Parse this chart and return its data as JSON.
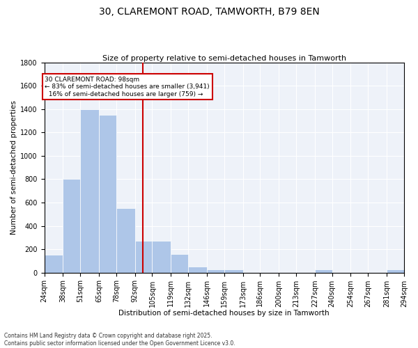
{
  "title": "30, CLAREMONT ROAD, TAMWORTH, B79 8EN",
  "subtitle": "Size of property relative to semi-detached houses in Tamworth",
  "xlabel": "Distribution of semi-detached houses by size in Tamworth",
  "ylabel": "Number of semi-detached properties",
  "property_size": 98,
  "property_label": "30 CLAREMONT ROAD: 98sqm",
  "smaller_pct": 83,
  "smaller_count": 3941,
  "larger_pct": 16,
  "larger_count": 759,
  "bin_edges": [
    24,
    38,
    51,
    65,
    78,
    92,
    105,
    119,
    132,
    146,
    159,
    173,
    186,
    200,
    213,
    227,
    240,
    254,
    267,
    281,
    294
  ],
  "bin_labels": [
    "24sqm",
    "38sqm",
    "51sqm",
    "65sqm",
    "78sqm",
    "92sqm",
    "105sqm",
    "119sqm",
    "132sqm",
    "146sqm",
    "159sqm",
    "173sqm",
    "186sqm",
    "200sqm",
    "213sqm",
    "227sqm",
    "240sqm",
    "254sqm",
    "267sqm",
    "281sqm",
    "294sqm"
  ],
  "counts": [
    150,
    800,
    1400,
    1350,
    550,
    270,
    270,
    160,
    50,
    30,
    30,
    0,
    0,
    0,
    0,
    30,
    0,
    0,
    0,
    30
  ],
  "bar_color": "#aec6e8",
  "bar_edge_color": "white",
  "line_color": "#cc0000",
  "bg_color": "#eef2f9",
  "grid_color": "#ffffff",
  "annotation_box_color": "#cc0000",
  "footer": "Contains HM Land Registry data © Crown copyright and database right 2025.\nContains public sector information licensed under the Open Government Licence v3.0.",
  "ylim": [
    0,
    1800
  ],
  "yticks": [
    0,
    200,
    400,
    600,
    800,
    1000,
    1200,
    1400,
    1600,
    1800
  ],
  "title_fontsize": 10,
  "subtitle_fontsize": 8,
  "ylabel_fontsize": 7.5,
  "xlabel_fontsize": 7.5,
  "tick_fontsize": 7,
  "annotation_fontsize": 6.5,
  "footer_fontsize": 5.5
}
